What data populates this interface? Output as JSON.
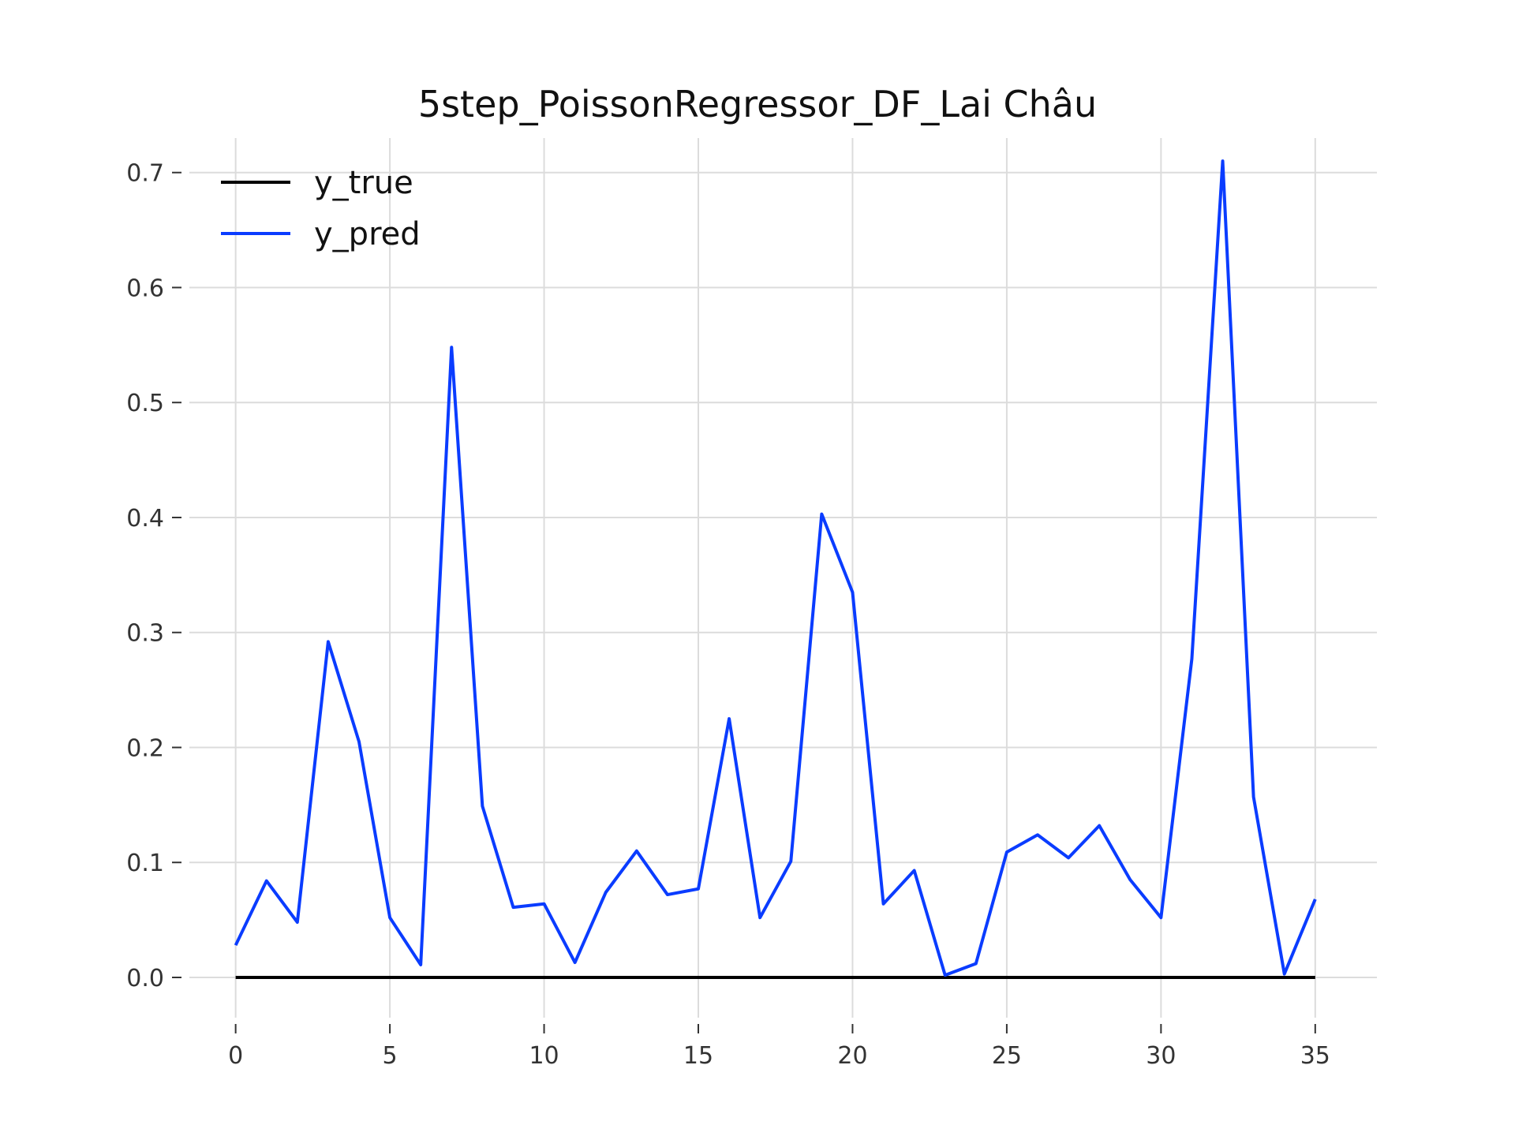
{
  "chart_data": {
    "type": "line",
    "title": "5step_PoissonRegressor_DF_Lai Châu",
    "xlabel": "",
    "ylabel": "",
    "xlim": [
      -1.5,
      37.0
    ],
    "ylim": [
      -0.035,
      0.73
    ],
    "xticks": [
      0,
      5,
      10,
      15,
      20,
      25,
      30,
      35
    ],
    "yticks": [
      0.0,
      0.1,
      0.2,
      0.3,
      0.4,
      0.5,
      0.6,
      0.7
    ],
    "ytick_labels": [
      "0.0",
      "0.1",
      "0.2",
      "0.3",
      "0.4",
      "0.5",
      "0.6",
      "0.7"
    ],
    "grid": true,
    "legend_position": "top-left",
    "x": [
      0,
      1,
      2,
      3,
      4,
      5,
      6,
      7,
      8,
      9,
      10,
      11,
      12,
      13,
      14,
      15,
      16,
      17,
      18,
      19,
      20,
      21,
      22,
      23,
      24,
      25,
      26,
      27,
      28,
      29,
      30,
      31,
      32,
      33,
      34,
      35
    ],
    "series": [
      {
        "name": "y_true",
        "color": "#000000",
        "values": [
          0,
          0,
          0,
          0,
          0,
          0,
          0,
          0,
          0,
          0,
          0,
          0,
          0,
          0,
          0,
          0,
          0,
          0,
          0,
          0,
          0,
          0,
          0,
          0,
          0,
          0,
          0,
          0,
          0,
          0,
          0,
          0,
          0,
          0,
          0,
          0
        ]
      },
      {
        "name": "y_pred",
        "color": "#0a3cff",
        "values": [
          0.028,
          0.084,
          0.048,
          0.292,
          0.205,
          0.052,
          0.011,
          0.548,
          0.149,
          0.061,
          0.064,
          0.013,
          0.074,
          0.11,
          0.072,
          0.077,
          0.225,
          0.052,
          0.101,
          0.403,
          0.335,
          0.064,
          0.093,
          0.002,
          0.012,
          0.109,
          0.124,
          0.104,
          0.132,
          0.085,
          0.052,
          0.277,
          0.71,
          0.157,
          0.003,
          0.068
        ]
      }
    ]
  }
}
